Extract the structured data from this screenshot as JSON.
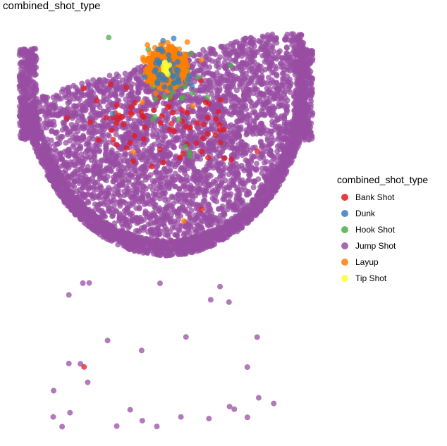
{
  "chart_data": {
    "type": "scatter",
    "title": "combined_shot_type",
    "legend": {
      "title": "combined_shot_type",
      "placement": "right",
      "entries": [
        {
          "name": "Bank Shot",
          "color": "#E41A1C"
        },
        {
          "name": "Dunk",
          "color": "#377EB8"
        },
        {
          "name": "Hook Shot",
          "color": "#4DAF4A"
        },
        {
          "name": "Jump Shot",
          "color": "#984EA3"
        },
        {
          "name": "Layup",
          "color": "#FF7F00"
        },
        {
          "name": "Tip Shot",
          "color": "#FFFF33"
        }
      ]
    },
    "axes": {
      "visible": false,
      "grid": false
    },
    "x_range": [
      -250,
      250
    ],
    "y_range": [
      -44,
      470
    ],
    "series": [
      {
        "name": "Bank Shot",
        "clusters": [
          {
            "cx": -55,
            "cy": 70,
            "sx": 40,
            "sy": 25,
            "n": 40
          },
          {
            "cx": 60,
            "cy": 75,
            "sx": 40,
            "sy": 25,
            "n": 35
          }
        ],
        "points": [
          [
            -138,
            390
          ],
          [
            60,
            185
          ],
          [
            70,
            65
          ]
        ]
      },
      {
        "name": "Dunk",
        "clusters": [
          {
            "cx": 0,
            "cy": 5,
            "sx": 18,
            "sy": 14,
            "n": 45
          }
        ],
        "points": [
          [
            -5,
            -35
          ],
          [
            13,
            -38
          ],
          [
            -90,
            60
          ]
        ]
      },
      {
        "name": "Hook Shot",
        "clusters": [
          {
            "cx": 0,
            "cy": 20,
            "sx": 40,
            "sy": 30,
            "n": 40
          }
        ],
        "points": [
          [
            40,
            110
          ],
          [
            40,
            115
          ],
          [
            -22,
            25
          ],
          [
            42,
            -18
          ]
        ]
      },
      {
        "name": "Jump Shot",
        "clusters": [
          {
            "type": "arc",
            "r_min": 225,
            "r_max": 245,
            "n": 2200
          },
          {
            "type": "wedge",
            "r_min": 0,
            "r_max": 230,
            "n": 3200
          },
          {
            "type": "corner",
            "x_min": -247,
            "x_max": -218,
            "y_min": -25,
            "y_max": 95,
            "n": 320
          },
          {
            "type": "corner",
            "x_min": 218,
            "x_max": 247,
            "y_min": -25,
            "y_max": 95,
            "n": 320
          },
          {
            "type": "backcourt",
            "x_min": -190,
            "x_max": 185,
            "y_min": 280,
            "y_max": 470,
            "n": 60
          }
        ],
        "points": [
          [
            -190,
            455
          ],
          [
            -132,
            410
          ],
          [
            -40,
            460
          ],
          [
            25,
            455
          ],
          [
            115,
            445
          ]
        ]
      },
      {
        "name": "Layup",
        "clusters": [
          {
            "cx": 0,
            "cy": 0,
            "sx": 14,
            "sy": 11,
            "n": 850
          }
        ],
        "points": [
          [
            -40,
            45
          ],
          [
            45,
            50
          ],
          [
            -55,
            110
          ],
          [
            30,
            200
          ]
        ]
      },
      {
        "name": "Tip Shot",
        "clusters": [
          {
            "cx": 0,
            "cy": 0,
            "sx": 4,
            "sy": 4,
            "n": 12
          }
        ],
        "points": []
      }
    ]
  }
}
